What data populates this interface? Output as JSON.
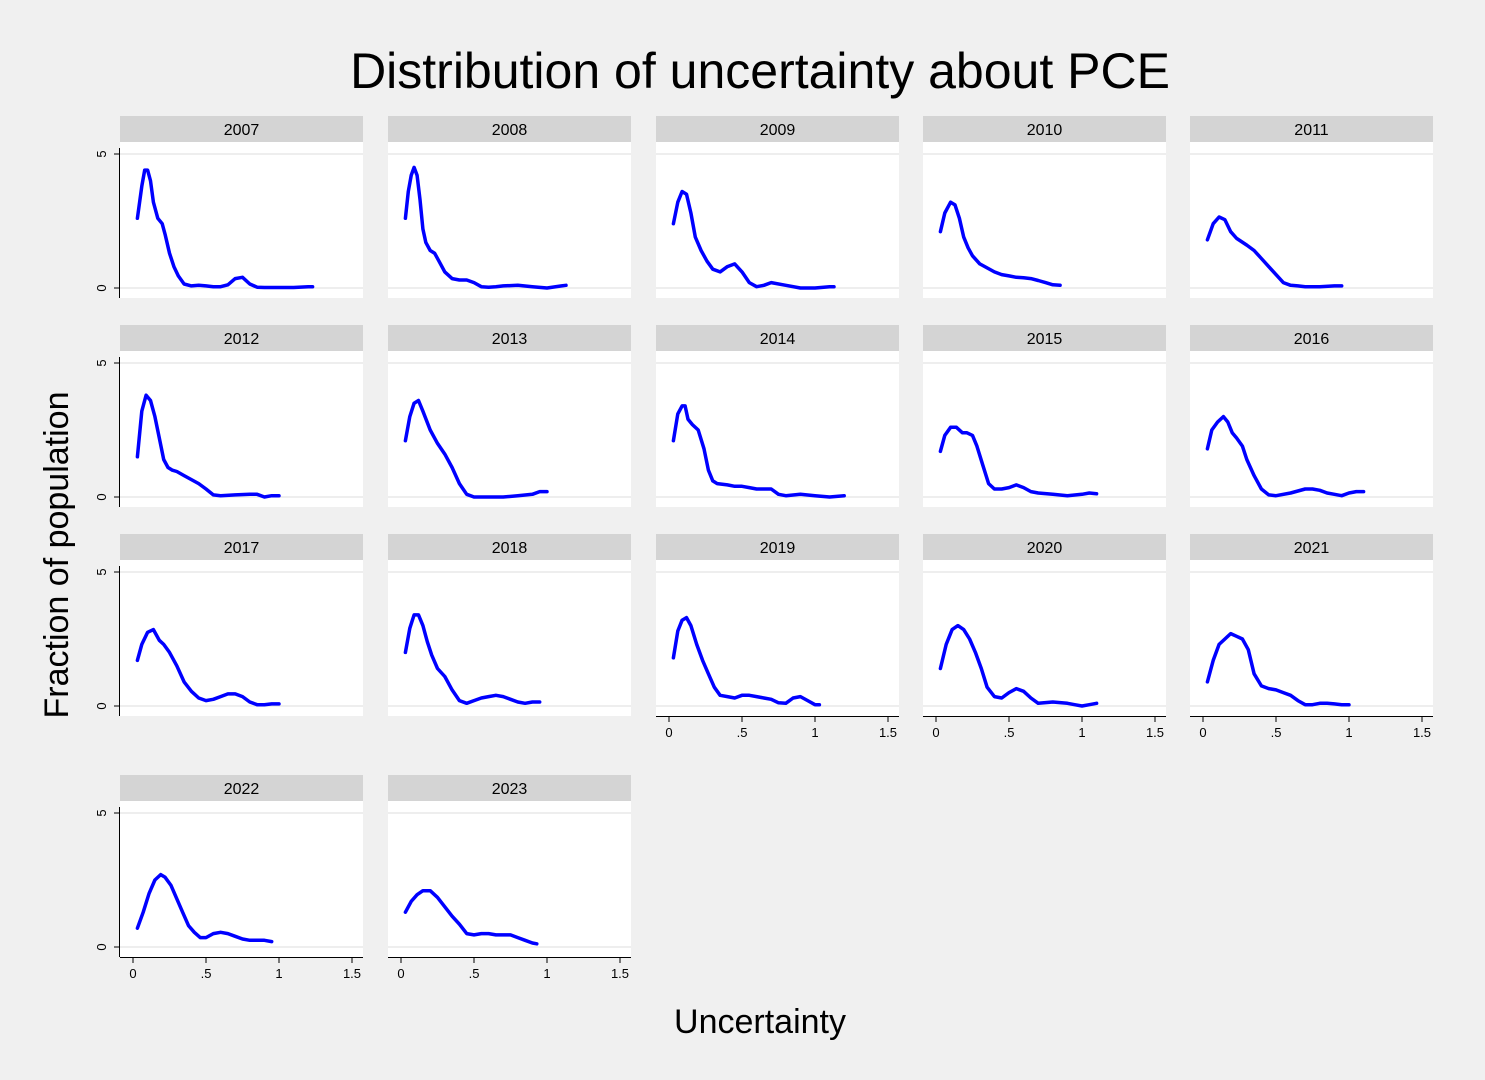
{
  "chart_data": {
    "type": "line",
    "title": "Distribution of uncertainty about PCE",
    "xlabel": "Uncertainty",
    "ylabel": "Fraction of population",
    "xlim": [
      0,
      1.5
    ],
    "ylim": [
      0,
      5
    ],
    "x_ticks": [
      "0",
      ".5",
      "1",
      "1.5"
    ],
    "y_ticks": [
      "0",
      "5"
    ],
    "grid": "horizontal",
    "line_color": "#0000ff",
    "panel_background": "#ffffff",
    "strip_background": "#d4d4d4",
    "page_background": "#f0f0f0",
    "panels": [
      {
        "year": "2007",
        "x": [
          0.03,
          0.06,
          0.08,
          0.1,
          0.12,
          0.14,
          0.17,
          0.2,
          0.22,
          0.25,
          0.28,
          0.31,
          0.35,
          0.4,
          0.45,
          0.5,
          0.55,
          0.6,
          0.65,
          0.7,
          0.75,
          0.8,
          0.85,
          0.9,
          1.0,
          1.1,
          1.2,
          1.23
        ],
        "y": [
          2.6,
          3.8,
          4.4,
          4.4,
          4.0,
          3.2,
          2.6,
          2.4,
          2.0,
          1.3,
          0.8,
          0.45,
          0.15,
          0.08,
          0.1,
          0.08,
          0.05,
          0.05,
          0.12,
          0.35,
          0.4,
          0.15,
          0.03,
          0.02,
          0.02,
          0.02,
          0.05,
          0.05
        ]
      },
      {
        "year": "2008",
        "x": [
          0.03,
          0.05,
          0.07,
          0.09,
          0.11,
          0.13,
          0.15,
          0.17,
          0.2,
          0.23,
          0.26,
          0.3,
          0.35,
          0.4,
          0.45,
          0.5,
          0.55,
          0.6,
          0.65,
          0.7,
          0.8,
          0.9,
          1.0,
          1.1,
          1.13
        ],
        "y": [
          2.6,
          3.6,
          4.2,
          4.5,
          4.2,
          3.3,
          2.2,
          1.7,
          1.4,
          1.3,
          1.0,
          0.6,
          0.35,
          0.3,
          0.3,
          0.2,
          0.05,
          0.03,
          0.05,
          0.08,
          0.1,
          0.05,
          0.0,
          0.08,
          0.1
        ]
      },
      {
        "year": "2009",
        "x": [
          0.03,
          0.06,
          0.09,
          0.12,
          0.15,
          0.18,
          0.22,
          0.26,
          0.3,
          0.35,
          0.4,
          0.45,
          0.5,
          0.55,
          0.6,
          0.65,
          0.7,
          0.8,
          0.9,
          1.0,
          1.1,
          1.13
        ],
        "y": [
          2.4,
          3.2,
          3.6,
          3.5,
          2.8,
          1.9,
          1.4,
          1.0,
          0.7,
          0.6,
          0.8,
          0.9,
          0.6,
          0.2,
          0.05,
          0.1,
          0.2,
          0.1,
          0.0,
          0.0,
          0.05,
          0.05
        ]
      },
      {
        "year": "2010",
        "x": [
          0.03,
          0.06,
          0.1,
          0.13,
          0.16,
          0.19,
          0.22,
          0.25,
          0.3,
          0.35,
          0.4,
          0.45,
          0.5,
          0.55,
          0.6,
          0.65,
          0.7,
          0.75,
          0.8,
          0.85
        ],
        "y": [
          2.1,
          2.8,
          3.2,
          3.1,
          2.6,
          1.9,
          1.5,
          1.2,
          0.9,
          0.75,
          0.6,
          0.5,
          0.45,
          0.4,
          0.38,
          0.35,
          0.28,
          0.2,
          0.12,
          0.1
        ]
      },
      {
        "year": "2011",
        "x": [
          0.03,
          0.07,
          0.11,
          0.15,
          0.19,
          0.23,
          0.3,
          0.35,
          0.4,
          0.45,
          0.5,
          0.55,
          0.6,
          0.65,
          0.7,
          0.8,
          0.9,
          0.95
        ],
        "y": [
          1.8,
          2.4,
          2.65,
          2.55,
          2.1,
          1.85,
          1.6,
          1.4,
          1.1,
          0.8,
          0.5,
          0.2,
          0.1,
          0.08,
          0.05,
          0.05,
          0.08,
          0.08
        ]
      },
      {
        "year": "2012",
        "x": [
          0.03,
          0.06,
          0.09,
          0.12,
          0.15,
          0.18,
          0.21,
          0.24,
          0.27,
          0.3,
          0.35,
          0.4,
          0.45,
          0.5,
          0.55,
          0.6,
          0.7,
          0.8,
          0.85,
          0.9,
          0.95,
          1.0
        ],
        "y": [
          1.5,
          3.2,
          3.8,
          3.6,
          3.0,
          2.2,
          1.4,
          1.1,
          1.0,
          0.95,
          0.8,
          0.65,
          0.5,
          0.3,
          0.08,
          0.05,
          0.08,
          0.1,
          0.1,
          0.0,
          0.05,
          0.05
        ]
      },
      {
        "year": "2013",
        "x": [
          0.03,
          0.06,
          0.09,
          0.12,
          0.15,
          0.2,
          0.25,
          0.3,
          0.35,
          0.4,
          0.45,
          0.5,
          0.6,
          0.7,
          0.8,
          0.9,
          0.95,
          1.0
        ],
        "y": [
          2.1,
          3.0,
          3.5,
          3.6,
          3.2,
          2.5,
          2.0,
          1.6,
          1.1,
          0.5,
          0.1,
          0.0,
          0.0,
          0.0,
          0.05,
          0.1,
          0.2,
          0.2
        ]
      },
      {
        "year": "2014",
        "x": [
          0.03,
          0.06,
          0.09,
          0.11,
          0.13,
          0.16,
          0.2,
          0.24,
          0.27,
          0.3,
          0.33,
          0.4,
          0.45,
          0.5,
          0.55,
          0.6,
          0.7,
          0.75,
          0.8,
          0.9,
          1.0,
          1.1,
          1.2
        ],
        "y": [
          2.1,
          3.1,
          3.4,
          3.4,
          2.9,
          2.7,
          2.5,
          1.8,
          1.0,
          0.6,
          0.5,
          0.45,
          0.4,
          0.4,
          0.35,
          0.3,
          0.3,
          0.1,
          0.05,
          0.1,
          0.05,
          0.0,
          0.05
        ]
      },
      {
        "year": "2015",
        "x": [
          0.03,
          0.06,
          0.1,
          0.14,
          0.18,
          0.21,
          0.25,
          0.28,
          0.32,
          0.36,
          0.4,
          0.45,
          0.5,
          0.55,
          0.6,
          0.65,
          0.7,
          0.8,
          0.9,
          1.0,
          1.05,
          1.1
        ],
        "y": [
          1.7,
          2.3,
          2.6,
          2.6,
          2.4,
          2.4,
          2.3,
          1.9,
          1.2,
          0.5,
          0.3,
          0.3,
          0.35,
          0.45,
          0.35,
          0.2,
          0.15,
          0.1,
          0.05,
          0.1,
          0.15,
          0.12
        ]
      },
      {
        "year": "2016",
        "x": [
          0.03,
          0.06,
          0.1,
          0.14,
          0.17,
          0.2,
          0.23,
          0.27,
          0.3,
          0.35,
          0.4,
          0.45,
          0.5,
          0.6,
          0.7,
          0.75,
          0.8,
          0.85,
          0.9,
          0.95,
          1.0,
          1.05,
          1.1
        ],
        "y": [
          1.8,
          2.5,
          2.8,
          3.0,
          2.8,
          2.4,
          2.2,
          1.9,
          1.4,
          0.8,
          0.3,
          0.08,
          0.05,
          0.15,
          0.3,
          0.3,
          0.25,
          0.15,
          0.1,
          0.05,
          0.15,
          0.2,
          0.2
        ]
      },
      {
        "year": "2017",
        "x": [
          0.03,
          0.06,
          0.1,
          0.14,
          0.18,
          0.21,
          0.25,
          0.3,
          0.35,
          0.4,
          0.45,
          0.5,
          0.55,
          0.6,
          0.65,
          0.7,
          0.75,
          0.8,
          0.85,
          0.9,
          0.95,
          1.0
        ],
        "y": [
          1.7,
          2.3,
          2.75,
          2.85,
          2.45,
          2.3,
          2.0,
          1.5,
          0.9,
          0.55,
          0.3,
          0.2,
          0.25,
          0.35,
          0.45,
          0.45,
          0.35,
          0.15,
          0.05,
          0.05,
          0.08,
          0.08
        ]
      },
      {
        "year": "2018",
        "x": [
          0.03,
          0.06,
          0.09,
          0.12,
          0.15,
          0.18,
          0.21,
          0.25,
          0.3,
          0.35,
          0.4,
          0.45,
          0.5,
          0.55,
          0.6,
          0.65,
          0.7,
          0.75,
          0.8,
          0.85,
          0.9,
          0.95
        ],
        "y": [
          2.0,
          2.9,
          3.4,
          3.4,
          3.0,
          2.4,
          1.9,
          1.4,
          1.1,
          0.6,
          0.2,
          0.1,
          0.2,
          0.3,
          0.35,
          0.4,
          0.35,
          0.25,
          0.15,
          0.1,
          0.15,
          0.15
        ]
      },
      {
        "year": "2019",
        "x": [
          0.03,
          0.06,
          0.09,
          0.12,
          0.15,
          0.19,
          0.23,
          0.27,
          0.31,
          0.35,
          0.4,
          0.45,
          0.5,
          0.55,
          0.6,
          0.65,
          0.7,
          0.75,
          0.8,
          0.85,
          0.9,
          0.95,
          1.0,
          1.03
        ],
        "y": [
          1.8,
          2.8,
          3.2,
          3.3,
          3.0,
          2.3,
          1.7,
          1.2,
          0.7,
          0.4,
          0.35,
          0.3,
          0.4,
          0.4,
          0.35,
          0.3,
          0.25,
          0.12,
          0.1,
          0.3,
          0.35,
          0.2,
          0.05,
          0.05
        ]
      },
      {
        "year": "2020",
        "x": [
          0.03,
          0.07,
          0.11,
          0.15,
          0.19,
          0.23,
          0.27,
          0.31,
          0.35,
          0.4,
          0.45,
          0.5,
          0.55,
          0.6,
          0.65,
          0.7,
          0.8,
          0.9,
          0.95,
          1.0,
          1.05,
          1.1
        ],
        "y": [
          1.4,
          2.3,
          2.85,
          3.0,
          2.85,
          2.5,
          2.0,
          1.4,
          0.7,
          0.35,
          0.3,
          0.5,
          0.65,
          0.55,
          0.3,
          0.1,
          0.15,
          0.1,
          0.05,
          0.0,
          0.05,
          0.1
        ]
      },
      {
        "year": "2021",
        "x": [
          0.03,
          0.07,
          0.11,
          0.15,
          0.19,
          0.23,
          0.27,
          0.31,
          0.35,
          0.4,
          0.45,
          0.5,
          0.55,
          0.6,
          0.65,
          0.7,
          0.75,
          0.8,
          0.85,
          0.9,
          0.95,
          1.0
        ],
        "y": [
          0.9,
          1.7,
          2.3,
          2.5,
          2.7,
          2.6,
          2.5,
          2.1,
          1.2,
          0.75,
          0.65,
          0.6,
          0.5,
          0.4,
          0.2,
          0.05,
          0.05,
          0.1,
          0.1,
          0.08,
          0.05,
          0.05
        ]
      },
      {
        "year": "2022",
        "x": [
          0.03,
          0.07,
          0.11,
          0.15,
          0.19,
          0.22,
          0.26,
          0.3,
          0.34,
          0.38,
          0.42,
          0.46,
          0.5,
          0.55,
          0.6,
          0.65,
          0.7,
          0.75,
          0.8,
          0.9,
          0.95
        ],
        "y": [
          0.7,
          1.3,
          2.0,
          2.5,
          2.7,
          2.6,
          2.3,
          1.8,
          1.3,
          0.8,
          0.55,
          0.35,
          0.35,
          0.5,
          0.55,
          0.5,
          0.4,
          0.3,
          0.25,
          0.25,
          0.2
        ]
      },
      {
        "year": "2023",
        "x": [
          0.03,
          0.07,
          0.11,
          0.15,
          0.2,
          0.25,
          0.3,
          0.35,
          0.4,
          0.45,
          0.5,
          0.55,
          0.6,
          0.65,
          0.7,
          0.75,
          0.8,
          0.85,
          0.9,
          0.93
        ],
        "y": [
          1.3,
          1.7,
          1.95,
          2.1,
          2.1,
          1.85,
          1.5,
          1.15,
          0.85,
          0.5,
          0.45,
          0.5,
          0.5,
          0.45,
          0.45,
          0.45,
          0.35,
          0.25,
          0.15,
          0.12
        ]
      }
    ]
  }
}
